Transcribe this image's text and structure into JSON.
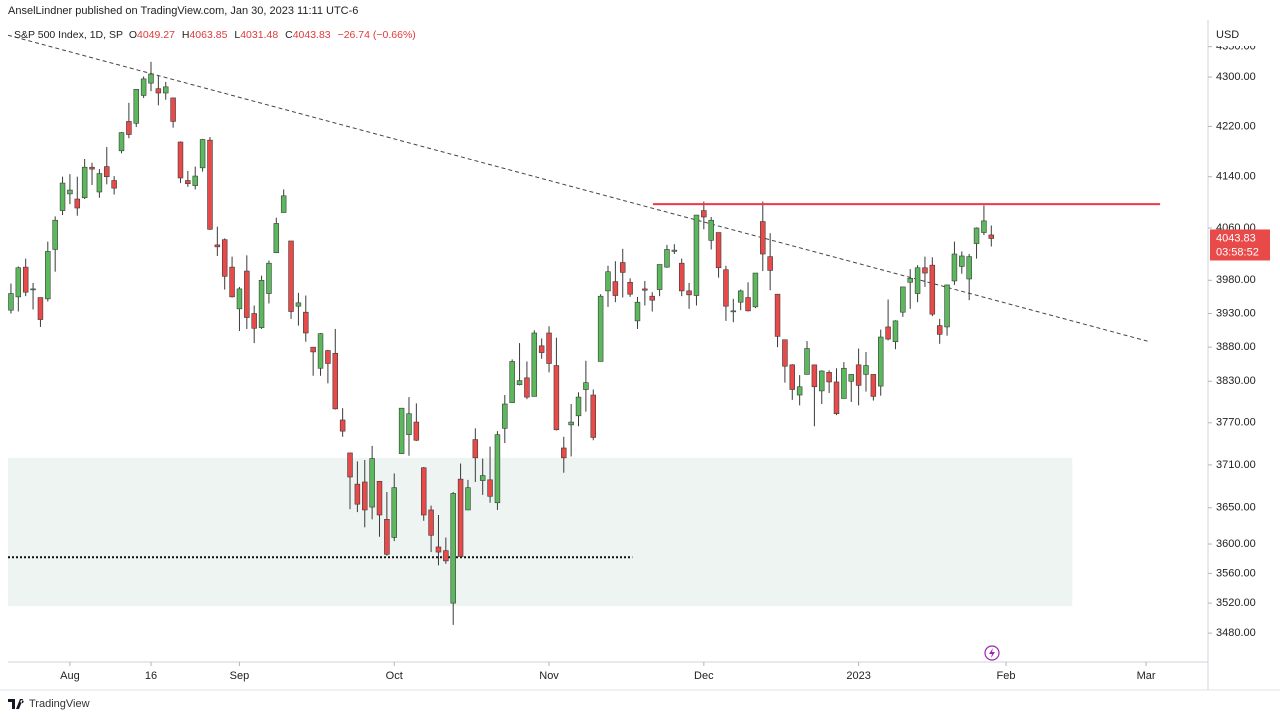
{
  "header": "AnselLindner published on TradingView.com, Jan 30, 2023 11:11 UTC-6",
  "footer": "TradingView",
  "chart_data": {
    "type": "candlestick",
    "currency": "USD",
    "legend": {
      "symbol": "S&P 500 Index, 1D, SP",
      "ohlc_labels": [
        "O",
        "H",
        "L",
        "C"
      ],
      "change": "−26.74 (−0.66%)"
    },
    "countdown": "03:58:52",
    "up_color": "#5cb85c",
    "down_color": "#e84a4a",
    "wick_color": "#3a3a3a",
    "log_scale": true,
    "xlim": [
      -0.4,
      162.4
    ],
    "ylim": [
      3442,
      4391
    ],
    "xticks": [
      {
        "value": 8,
        "label": "Aug"
      },
      {
        "value": 19,
        "label": "16"
      },
      {
        "value": 31,
        "label": "Sep"
      },
      {
        "value": 52,
        "label": "Oct"
      },
      {
        "value": 73,
        "label": "Nov"
      },
      {
        "value": 94,
        "label": "Dec"
      },
      {
        "value": 115,
        "label": "2023"
      },
      {
        "value": 135,
        "label": "Feb"
      },
      {
        "value": 154,
        "label": "Mar"
      }
    ],
    "yticks": [
      {
        "value": 4350,
        "label": "4350.00"
      },
      {
        "value": 4300,
        "label": "4300.00"
      },
      {
        "value": 4220,
        "label": "4220.00"
      },
      {
        "value": 4140,
        "label": "4140.00"
      },
      {
        "value": 4060,
        "label": "4060.00"
      },
      {
        "value": 3980,
        "label": "3980.00"
      },
      {
        "value": 3930,
        "label": "3930.00"
      },
      {
        "value": 3880,
        "label": "3880.00"
      },
      {
        "value": 3830,
        "label": "3830.00"
      },
      {
        "value": 3770,
        "label": "3770.00"
      },
      {
        "value": 3710,
        "label": "3710.00"
      },
      {
        "value": 3650,
        "label": "3650.00"
      },
      {
        "value": 3600,
        "label": "3600.00"
      },
      {
        "value": 3560,
        "label": "3560.00"
      },
      {
        "value": 3520,
        "label": "3520.00"
      },
      {
        "value": 3480,
        "label": "3480.00"
      }
    ],
    "ohlc": [
      [
        3935,
        3975,
        3930,
        3960
      ],
      [
        3955,
        4001,
        3933,
        3999
      ],
      [
        4000,
        4013,
        3956,
        3962
      ],
      [
        3966,
        3976,
        3936,
        3967
      ],
      [
        3954,
        3954,
        3910,
        3921
      ],
      [
        3952,
        4039,
        3948,
        4024
      ],
      [
        4027,
        4078,
        3993,
        4072
      ],
      [
        4087,
        4140,
        4080,
        4130
      ],
      [
        4113,
        4144,
        4097,
        4119
      ],
      [
        4105,
        4140,
        4079,
        4091
      ],
      [
        4107,
        4168,
        4105,
        4155
      ],
      [
        4155,
        4162,
        4127,
        4152
      ],
      [
        4116,
        4152,
        4107,
        4145
      ],
      [
        4156,
        4187,
        4128,
        4140
      ],
      [
        4134,
        4141,
        4112,
        4122
      ],
      [
        4181,
        4211,
        4177,
        4210
      ],
      [
        4228,
        4258,
        4201,
        4207
      ],
      [
        4225,
        4280,
        4219,
        4280
      ],
      [
        4270,
        4301,
        4266,
        4297
      ],
      [
        4290,
        4325,
        4277,
        4305
      ],
      [
        4281,
        4302,
        4254,
        4274
      ],
      [
        4274,
        4292,
        4263,
        4284
      ],
      [
        4266,
        4266,
        4218,
        4228
      ],
      [
        4195,
        4196,
        4130,
        4138
      ],
      [
        4134,
        4149,
        4124,
        4129
      ],
      [
        4126,
        4156,
        4120,
        4141
      ],
      [
        4154,
        4200,
        4148,
        4199
      ],
      [
        4198,
        4203,
        4057,
        4058
      ],
      [
        4034,
        4062,
        4017,
        4031
      ],
      [
        4042,
        4044,
        3966,
        3986
      ],
      [
        4000,
        4016,
        3954,
        3955
      ],
      [
        3937,
        3970,
        3904,
        3967
      ],
      [
        3994,
        4018,
        3907,
        3924
      ],
      [
        3930,
        3942,
        3886,
        3908
      ],
      [
        3909,
        3987,
        3907,
        3980
      ],
      [
        3960,
        4010,
        3945,
        4006
      ],
      [
        4022,
        4076,
        4022,
        4067
      ],
      [
        4084,
        4120,
        4084,
        4110
      ],
      [
        4040,
        4040,
        3922,
        3933
      ],
      [
        3941,
        3961,
        3912,
        3946
      ],
      [
        3932,
        3957,
        3888,
        3901
      ],
      [
        3880,
        3880,
        3838,
        3873
      ],
      [
        3849,
        3901,
        3838,
        3900
      ],
      [
        3875,
        3876,
        3827,
        3856
      ],
      [
        3871,
        3907,
        3789,
        3790
      ],
      [
        3774,
        3791,
        3750,
        3758
      ],
      [
        3727,
        3727,
        3648,
        3693
      ],
      [
        3683,
        3715,
        3644,
        3655
      ],
      [
        3686,
        3717,
        3623,
        3647
      ],
      [
        3651,
        3737,
        3634,
        3719
      ],
      [
        3687,
        3687,
        3610,
        3640
      ],
      [
        3634,
        3672,
        3584,
        3586
      ],
      [
        3609,
        3698,
        3604,
        3678
      ],
      [
        3726,
        3791,
        3726,
        3791
      ],
      [
        3753,
        3807,
        3723,
        3783
      ],
      [
        3771,
        3798,
        3744,
        3745
      ],
      [
        3706,
        3707,
        3632,
        3640
      ],
      [
        3647,
        3653,
        3589,
        3612
      ],
      [
        3596,
        3640,
        3571,
        3589
      ],
      [
        3591,
        3609,
        3573,
        3577
      ],
      [
        3520,
        3672,
        3491,
        3670
      ],
      [
        3690,
        3712,
        3582,
        3583
      ],
      [
        3647,
        3689,
        3647,
        3678
      ],
      [
        3746,
        3762,
        3686,
        3720
      ],
      [
        3688,
        3719,
        3668,
        3695
      ],
      [
        3689,
        3736,
        3657,
        3666
      ],
      [
        3657,
        3758,
        3647,
        3753
      ],
      [
        3762,
        3810,
        3741,
        3797
      ],
      [
        3799,
        3862,
        3799,
        3859
      ],
      [
        3825,
        3886,
        3824,
        3831
      ],
      [
        3835,
        3859,
        3804,
        3807
      ],
      [
        3808,
        3905,
        3808,
        3901
      ],
      [
        3882,
        3893,
        3863,
        3872
      ],
      [
        3901,
        3911,
        3843,
        3856
      ],
      [
        3853,
        3894,
        3759,
        3760
      ],
      [
        3734,
        3750,
        3699,
        3720
      ],
      [
        3767,
        3797,
        3722,
        3771
      ],
      [
        3780,
        3814,
        3765,
        3807
      ],
      [
        3818,
        3860,
        3786,
        3828
      ],
      [
        3810,
        3818,
        3745,
        3749
      ],
      [
        3859,
        3959,
        3859,
        3956
      ],
      [
        3964,
        4002,
        3940,
        3993
      ],
      [
        3978,
        4009,
        3947,
        3957
      ],
      [
        4007,
        4028,
        3954,
        3992
      ],
      [
        3977,
        3983,
        3955,
        3959
      ],
      [
        3919,
        3955,
        3907,
        3947
      ],
      [
        3967,
        3979,
        3942,
        3965
      ],
      [
        3956,
        3962,
        3933,
        3950
      ],
      [
        3966,
        4004,
        3956,
        4004
      ],
      [
        4000,
        4034,
        3999,
        4027
      ],
      [
        4024,
        4035,
        4020,
        4026
      ],
      [
        4006,
        4013,
        3956,
        3964
      ],
      [
        3964,
        3976,
        3937,
        3958
      ],
      [
        3957,
        4080,
        3942,
        4080
      ],
      [
        4087,
        4101,
        4058,
        4077
      ],
      [
        4041,
        4077,
        4027,
        4072
      ],
      [
        4053,
        4053,
        3984,
        3999
      ],
      [
        3996,
        4002,
        3919,
        3941
      ],
      [
        3934,
        3952,
        3917,
        3934
      ],
      [
        3947,
        3966,
        3935,
        3964
      ],
      [
        3954,
        3977,
        3933,
        3934
      ],
      [
        3940,
        3991,
        3938,
        3991
      ],
      [
        4070,
        4101,
        3994,
        4020
      ],
      [
        4016,
        4052,
        3965,
        3995
      ],
      [
        3959,
        3959,
        3880,
        3896
      ],
      [
        3891,
        3891,
        3828,
        3852
      ],
      [
        3854,
        3855,
        3803,
        3818
      ],
      [
        3810,
        3839,
        3795,
        3822
      ],
      [
        3840,
        3889,
        3840,
        3878
      ],
      [
        3854,
        3854,
        3765,
        3822
      ],
      [
        3816,
        3846,
        3797,
        3845
      ],
      [
        3843,
        3846,
        3813,
        3829
      ],
      [
        3829,
        3849,
        3781,
        3783
      ],
      [
        3805,
        3858,
        3805,
        3849
      ],
      [
        3830,
        3840,
        3800,
        3840
      ],
      [
        3854,
        3878,
        3795,
        3824
      ],
      [
        3840,
        3873,
        3815,
        3853
      ],
      [
        3840,
        3840,
        3802,
        3808
      ],
      [
        3823,
        3906,
        3809,
        3895
      ],
      [
        3910,
        3951,
        3890,
        3892
      ],
      [
        3888,
        3920,
        3877,
        3919
      ],
      [
        3932,
        3970,
        3925,
        3970
      ],
      [
        3977,
        3997,
        3937,
        3983
      ],
      [
        3960,
        4003,
        3947,
        3999
      ],
      [
        3999,
        4016,
        3970,
        3991
      ],
      [
        4003,
        4015,
        3926,
        3929
      ],
      [
        3912,
        3922,
        3885,
        3899
      ],
      [
        3910,
        3973,
        3897,
        3973
      ],
      [
        3979,
        4039,
        3973,
        4020
      ],
      [
        4001,
        4024,
        3990,
        4017
      ],
      [
        3982,
        4020,
        3950,
        4016
      ],
      [
        4036,
        4061,
        4013,
        4060
      ],
      [
        4053,
        4095,
        4049,
        4071
      ],
      [
        4049.27,
        4063.85,
        4031.48,
        4043.83
      ]
    ],
    "drawings": {
      "zone": {
        "x": [
          -0.4,
          144
        ],
        "y": [
          3516,
          3720
        ],
        "color": "#eef4f1"
      },
      "trendline": {
        "x": [
          -0.4,
          154.5
        ],
        "y": [
          4369,
          3888
        ],
        "color": "#444444"
      },
      "resistance": {
        "x": [
          87.1,
          155.9
        ],
        "y": [
          4097,
          4097
        ],
        "color": "#f23645"
      },
      "support": {
        "x": [
          -0.4,
          84.3
        ],
        "y": [
          3582,
          3582
        ],
        "color": "#111111"
      }
    }
  }
}
